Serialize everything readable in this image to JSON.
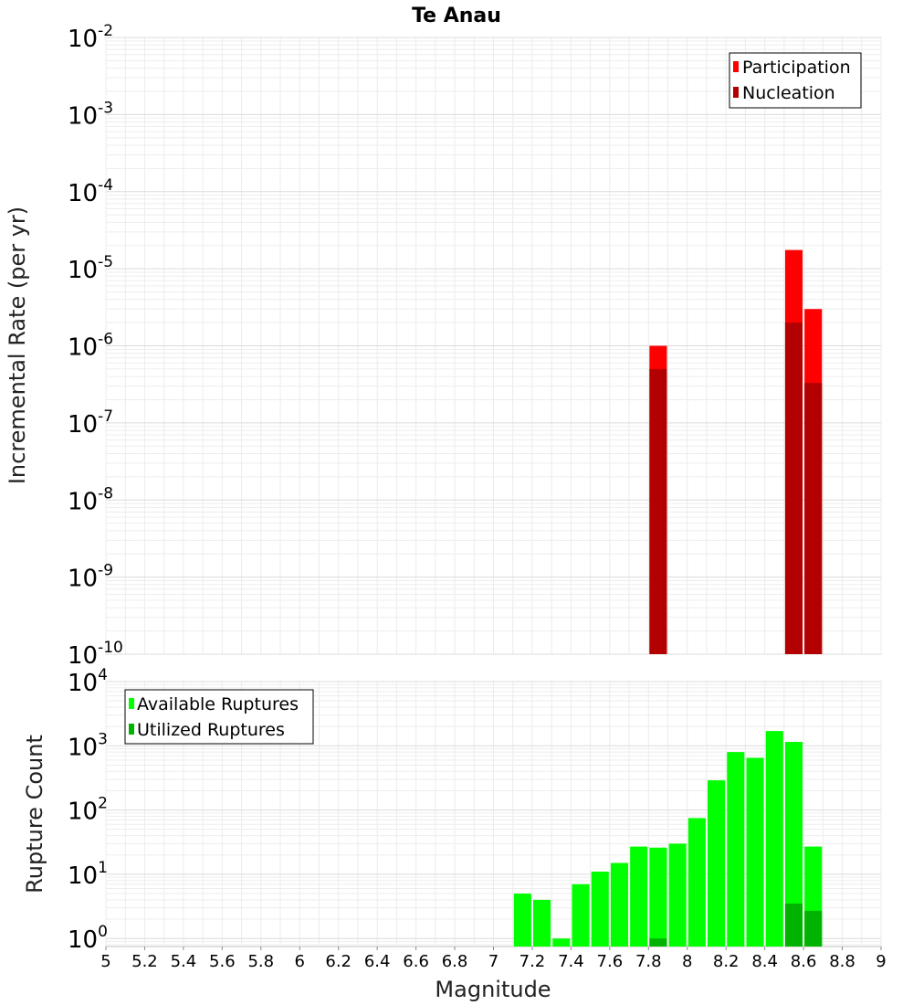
{
  "chart_data": [
    {
      "type": "bar",
      "title": "Te Anau",
      "xlabel": "",
      "ylabel": "Incremental Rate (per yr)",
      "y_scale": "log",
      "ylim": [
        1e-10,
        0.01
      ],
      "xlim": [
        5,
        9
      ],
      "y_tick_exponents": [
        "-10",
        "-9",
        "-8",
        "-7",
        "-6",
        "-5",
        "-4",
        "-3",
        "-2"
      ],
      "grid": true,
      "legend_position": "top-right",
      "bar_width": 0.09,
      "series": [
        {
          "name": "Participation",
          "color": "#ff0000",
          "points": [
            {
              "x": 7.85,
              "y": 1e-06
            },
            {
              "x": 8.55,
              "y": 1.75e-05
            },
            {
              "x": 8.65,
              "y": 3e-06
            }
          ]
        },
        {
          "name": "Nucleation",
          "color": "#b30000",
          "points": [
            {
              "x": 7.85,
              "y": 5e-07
            },
            {
              "x": 8.55,
              "y": 2e-06
            },
            {
              "x": 8.65,
              "y": 3.3e-07
            }
          ]
        }
      ]
    },
    {
      "type": "bar",
      "title": "",
      "xlabel": "Magnitude",
      "ylabel": "Rupture Count",
      "y_scale": "log",
      "ylim": [
        0.75,
        10000
      ],
      "xlim": [
        5,
        9
      ],
      "x_ticks": [
        "5",
        "5.2",
        "5.4",
        "5.6",
        "5.8",
        "6",
        "6.2",
        "6.4",
        "6.6",
        "6.8",
        "7",
        "7.2",
        "7.4",
        "7.6",
        "7.8",
        "8",
        "8.2",
        "8.4",
        "8.6",
        "8.8",
        "9"
      ],
      "y_tick_exponents": [
        "0",
        "1",
        "2",
        "3",
        "4"
      ],
      "grid": true,
      "legend_position": "top-left",
      "bar_width": 0.09,
      "series": [
        {
          "name": "Available Ruptures",
          "color": "#00ff00",
          "points": [
            {
              "x": 7.15,
              "y": 5
            },
            {
              "x": 7.25,
              "y": 4
            },
            {
              "x": 7.35,
              "y": 1
            },
            {
              "x": 7.45,
              "y": 7
            },
            {
              "x": 7.55,
              "y": 11
            },
            {
              "x": 7.65,
              "y": 15
            },
            {
              "x": 7.75,
              "y": 27
            },
            {
              "x": 7.85,
              "y": 26
            },
            {
              "x": 7.95,
              "y": 30
            },
            {
              "x": 8.05,
              "y": 75
            },
            {
              "x": 8.15,
              "y": 290
            },
            {
              "x": 8.25,
              "y": 800
            },
            {
              "x": 8.35,
              "y": 650
            },
            {
              "x": 8.45,
              "y": 1700
            },
            {
              "x": 8.55,
              "y": 1150
            },
            {
              "x": 8.65,
              "y": 27
            }
          ]
        },
        {
          "name": "Utilized Ruptures",
          "color": "#00b300",
          "points": [
            {
              "x": 7.85,
              "y": 1
            },
            {
              "x": 8.55,
              "y": 3.5
            },
            {
              "x": 8.65,
              "y": 2.7
            }
          ]
        }
      ]
    }
  ]
}
